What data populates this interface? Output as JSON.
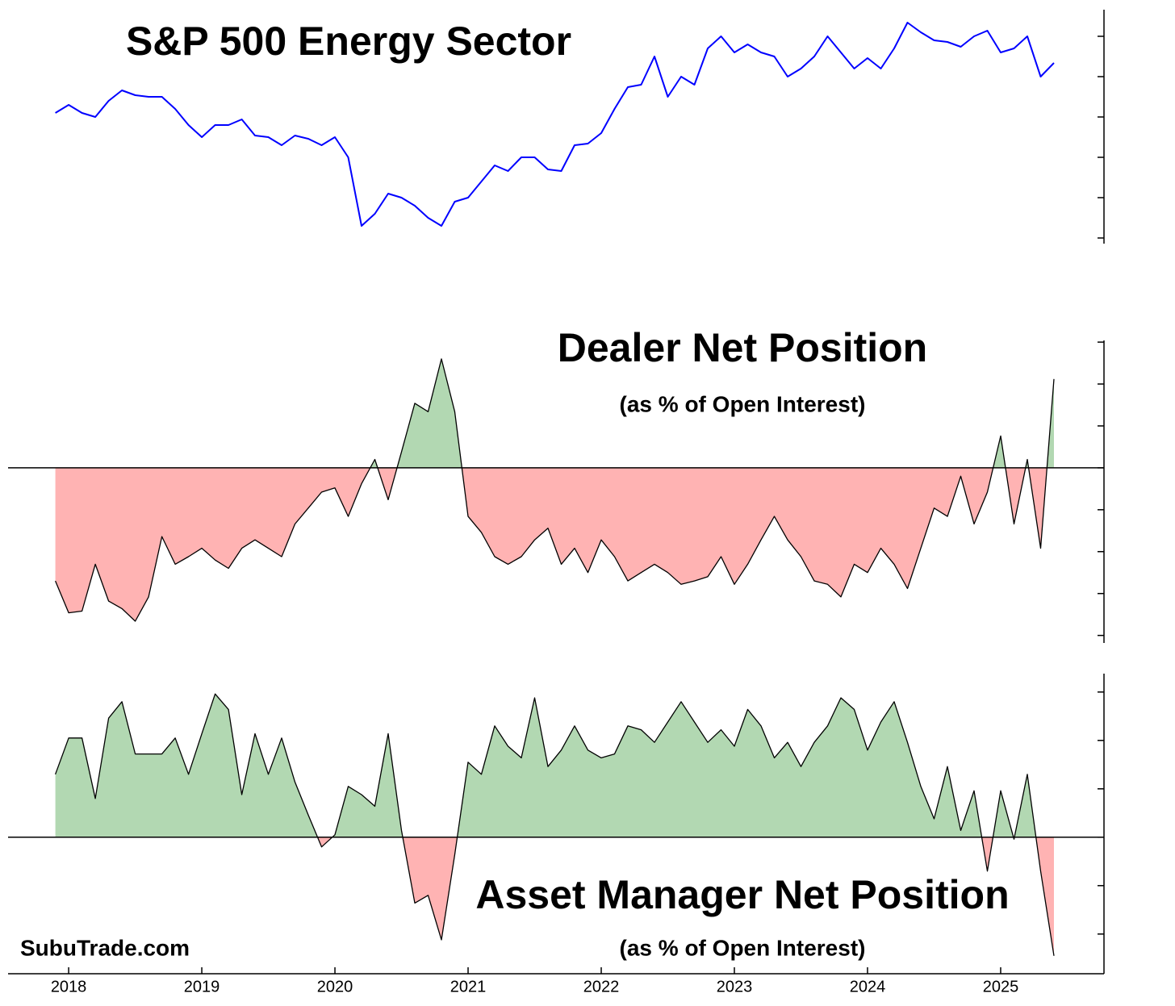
{
  "chart_data": [
    {
      "type": "line",
      "title": "S&P 500 Energy Sector",
      "color": "#0000ff",
      "x": [
        2017.9,
        2018.0,
        2018.1,
        2018.2,
        2018.3,
        2018.4,
        2018.5,
        2018.6,
        2018.7,
        2018.8,
        2018.9,
        2019.0,
        2019.1,
        2019.2,
        2019.3,
        2019.4,
        2019.5,
        2019.6,
        2019.7,
        2019.8,
        2019.9,
        2020.0,
        2020.1,
        2020.2,
        2020.3,
        2020.4,
        2020.5,
        2020.6,
        2020.7,
        2020.8,
        2020.9,
        2021.0,
        2021.1,
        2021.2,
        2021.3,
        2021.4,
        2021.5,
        2021.6,
        2021.7,
        2021.8,
        2021.9,
        2022.0,
        2022.1,
        2022.2,
        2022.3,
        2022.4,
        2022.5,
        2022.6,
        2022.7,
        2022.8,
        2022.9,
        2023.0,
        2023.1,
        2023.2,
        2023.3,
        2023.4,
        2023.5,
        2023.6,
        2023.7,
        2023.8,
        2023.9,
        2024.0,
        2024.1,
        2024.2,
        2024.3,
        2024.4,
        2024.5,
        2024.6,
        2024.7,
        2024.8,
        2024.9,
        2025.0,
        2025.1,
        2025.2,
        2025.3,
        2025.4
      ],
      "values": [
        3.1,
        3.3,
        3.1,
        3.0,
        3.4,
        3.66,
        3.54,
        3.5,
        3.5,
        3.2,
        2.8,
        2.5,
        2.8,
        2.8,
        2.94,
        2.54,
        2.5,
        2.3,
        2.54,
        2.46,
        2.3,
        2.5,
        2.0,
        0.3,
        0.6,
        1.1,
        1.0,
        0.8,
        0.5,
        0.3,
        0.9,
        1.0,
        1.4,
        1.8,
        1.66,
        2.0,
        2.0,
        1.7,
        1.66,
        2.3,
        2.34,
        2.6,
        3.2,
        3.74,
        3.8,
        4.5,
        3.5,
        4.0,
        3.8,
        4.7,
        5.0,
        4.6,
        4.8,
        4.6,
        4.5,
        4.0,
        4.2,
        4.5,
        5.0,
        4.6,
        4.2,
        4.46,
        4.2,
        4.7,
        5.34,
        5.1,
        4.9,
        4.86,
        4.74,
        5.0,
        5.14,
        4.6,
        4.7,
        5.0,
        4.0,
        4.34
      ],
      "xlim": [
        2017.545,
        2025.776
      ],
      "ylim": [
        -0.14,
        5.66
      ],
      "yticks": [
        0,
        1,
        2,
        3,
        4,
        5
      ]
    },
    {
      "type": "area",
      "title": "Dealer Net Position",
      "subtitle": "(as % of Open Interest)",
      "color": "#000000",
      "fill_colors": {
        "positive": "#b2d8b2",
        "negative": "#ffb3b3"
      },
      "x": [
        2017.9,
        2018.0,
        2018.1,
        2018.2,
        2018.3,
        2018.4,
        2018.5,
        2018.6,
        2018.7,
        2018.8,
        2018.9,
        2019.0,
        2019.1,
        2019.2,
        2019.3,
        2019.4,
        2019.5,
        2019.6,
        2019.7,
        2019.8,
        2019.9,
        2020.0,
        2020.1,
        2020.2,
        2020.3,
        2020.4,
        2020.5,
        2020.6,
        2020.7,
        2020.8,
        2020.9,
        2021.0,
        2021.1,
        2021.2,
        2021.3,
        2021.4,
        2021.5,
        2021.6,
        2021.7,
        2021.8,
        2021.9,
        2022.0,
        2022.1,
        2022.2,
        2022.3,
        2022.4,
        2022.5,
        2022.6,
        2022.7,
        2022.8,
        2022.9,
        2023.0,
        2023.1,
        2023.2,
        2023.3,
        2023.4,
        2023.5,
        2023.6,
        2023.7,
        2023.8,
        2023.9,
        2024.0,
        2024.1,
        2024.2,
        2024.3,
        2024.4,
        2024.5,
        2024.6,
        2024.7,
        2024.8,
        2024.9,
        2025.0,
        2025.1,
        2025.2,
        2025.3,
        2025.4
      ],
      "values": [
        -13.5,
        -17.3,
        -17.1,
        -11.5,
        -15.9,
        -16.8,
        -18.3,
        -15.4,
        -8.2,
        -11.5,
        -10.6,
        -9.6,
        -11.0,
        -12.0,
        -9.6,
        -8.6,
        -9.6,
        -10.6,
        -6.7,
        -4.8,
        -2.9,
        -2.4,
        -5.8,
        -1.9,
        1.0,
        -3.8,
        1.9,
        7.7,
        6.7,
        13.0,
        6.7,
        -5.8,
        -7.7,
        -10.6,
        -11.5,
        -10.6,
        -8.6,
        -7.2,
        -11.5,
        -9.6,
        -12.5,
        -8.6,
        -10.6,
        -13.5,
        -12.5,
        -11.5,
        -12.5,
        -13.9,
        -13.5,
        -13.0,
        -10.6,
        -13.9,
        -11.5,
        -8.6,
        -5.8,
        -8.6,
        -10.6,
        -13.5,
        -13.9,
        -15.4,
        -11.5,
        -12.5,
        -9.6,
        -11.5,
        -14.4,
        -9.6,
        -4.8,
        -5.8,
        -1.0,
        -6.7,
        -2.9,
        3.8,
        -6.7,
        1.0,
        -9.6,
        10.6
      ],
      "xlim": [
        2017.545,
        2025.776
      ],
      "ylim": [
        -20.9,
        15.2
      ],
      "yticks": [
        -20,
        -15,
        -10,
        -5,
        0,
        5,
        10,
        15
      ]
    },
    {
      "type": "area",
      "title": "Asset Manager Net Position",
      "subtitle": "(as % of Open Interest)",
      "annotation": "SubuTrade.com",
      "color": "#000000",
      "fill_colors": {
        "positive": "#b2d8b2",
        "negative": "#ffb3b3"
      },
      "x": [
        2017.9,
        2018.0,
        2018.1,
        2018.2,
        2018.3,
        2018.4,
        2018.5,
        2018.6,
        2018.7,
        2018.8,
        2018.9,
        2019.0,
        2019.1,
        2019.2,
        2019.3,
        2019.4,
        2019.5,
        2019.6,
        2019.7,
        2019.8,
        2019.9,
        2020.0,
        2020.1,
        2020.2,
        2020.3,
        2020.4,
        2020.5,
        2020.6,
        2020.7,
        2020.8,
        2020.9,
        2021.0,
        2021.1,
        2021.2,
        2021.3,
        2021.4,
        2021.5,
        2021.6,
        2021.7,
        2021.8,
        2021.9,
        2022.0,
        2022.1,
        2022.2,
        2022.3,
        2022.4,
        2022.5,
        2022.6,
        2022.7,
        2022.8,
        2022.9,
        2023.0,
        2023.1,
        2023.2,
        2023.3,
        2023.4,
        2023.5,
        2023.6,
        2023.7,
        2023.8,
        2023.9,
        2024.0,
        2024.1,
        2024.2,
        2024.3,
        2024.4,
        2024.5,
        2024.6,
        2024.7,
        2024.8,
        2024.9,
        2025.0,
        2025.1,
        2025.2,
        2025.3,
        2025.4
      ],
      "values": [
        6.5,
        10.25,
        10.25,
        4.0,
        12.3,
        14.0,
        8.6,
        8.6,
        8.6,
        10.25,
        6.5,
        10.7,
        14.8,
        13.2,
        4.4,
        10.7,
        6.5,
        10.25,
        5.7,
        2.3,
        -1.0,
        0.25,
        5.25,
        4.4,
        3.2,
        10.7,
        0.7,
        -6.8,
        -6.0,
        -10.6,
        -1.8,
        7.75,
        6.5,
        11.5,
        9.4,
        8.2,
        14.4,
        7.3,
        9.0,
        11.5,
        9.0,
        8.2,
        8.6,
        11.5,
        11.1,
        9.8,
        11.9,
        14.0,
        11.9,
        9.8,
        11.1,
        9.4,
        13.2,
        11.5,
        8.2,
        9.8,
        7.3,
        9.8,
        11.5,
        14.4,
        13.2,
        9.0,
        11.9,
        14.0,
        9.8,
        5.25,
        1.9,
        7.3,
        0.7,
        4.8,
        -3.5,
        4.8,
        -0.2,
        6.5,
        -3.5,
        -12.25
      ],
      "xlim": [
        2017.545,
        2025.776
      ],
      "ylim": [
        -14.1,
        16.9
      ],
      "yticks": [
        -10,
        -5,
        0,
        5,
        10,
        15
      ],
      "xticks": [
        2018,
        2019,
        2020,
        2021,
        2022,
        2023,
        2024,
        2025
      ]
    }
  ]
}
